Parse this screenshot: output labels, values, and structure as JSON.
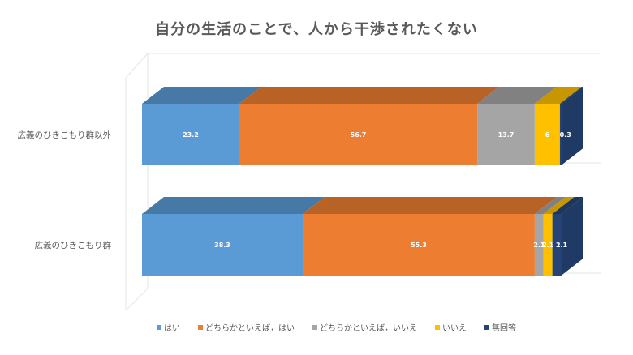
{
  "chart_data": {
    "type": "bar",
    "orientation": "horizontal",
    "stacked": "100%",
    "three_d": true,
    "title": "自分の生活のことで、人から干渉されたくない",
    "categories": [
      "広義のひきこもり群以外",
      "広義のひきこもり群"
    ],
    "series": [
      {
        "name": "はい",
        "color": "#5b9bd5",
        "values": [
          23.2,
          38.3
        ],
        "labels": [
          "23.2",
          "38.3"
        ]
      },
      {
        "name": "どちらかといえば，はい",
        "color": "#ed7d31",
        "values": [
          56.7,
          55.3
        ],
        "labels": [
          "56.7",
          "55.3"
        ]
      },
      {
        "name": "どちらかといえば，いいえ",
        "color": "#a5a5a5",
        "values": [
          13.7,
          2.1
        ],
        "labels": [
          "13.7",
          "2.1"
        ]
      },
      {
        "name": "いいえ",
        "color": "#ffc000",
        "values": [
          6,
          2.1
        ],
        "labels": [
          "6",
          "2.1"
        ]
      },
      {
        "name": "無回答",
        "color": "#264478",
        "values": [
          0.3,
          2.1
        ],
        "labels": [
          "0.3",
          "2.1"
        ]
      }
    ],
    "xlim": [
      0,
      100
    ],
    "grid": true,
    "legend": "bottom"
  }
}
